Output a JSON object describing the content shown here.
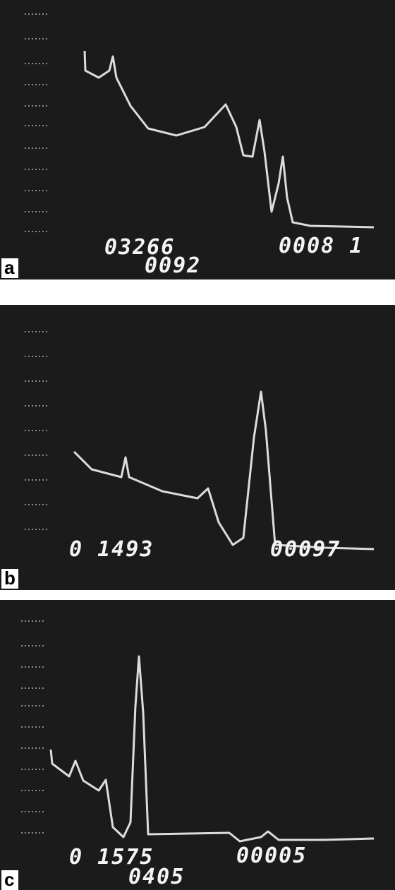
{
  "panels": [
    {
      "label": "a",
      "readouts": [
        "03266",
        "0092",
        "0008 1"
      ]
    },
    {
      "label": "b",
      "readouts": [
        "0 1493",
        "00097"
      ]
    },
    {
      "label": "c",
      "readouts": [
        "0 1575",
        "0405",
        "00005"
      ]
    }
  ]
}
